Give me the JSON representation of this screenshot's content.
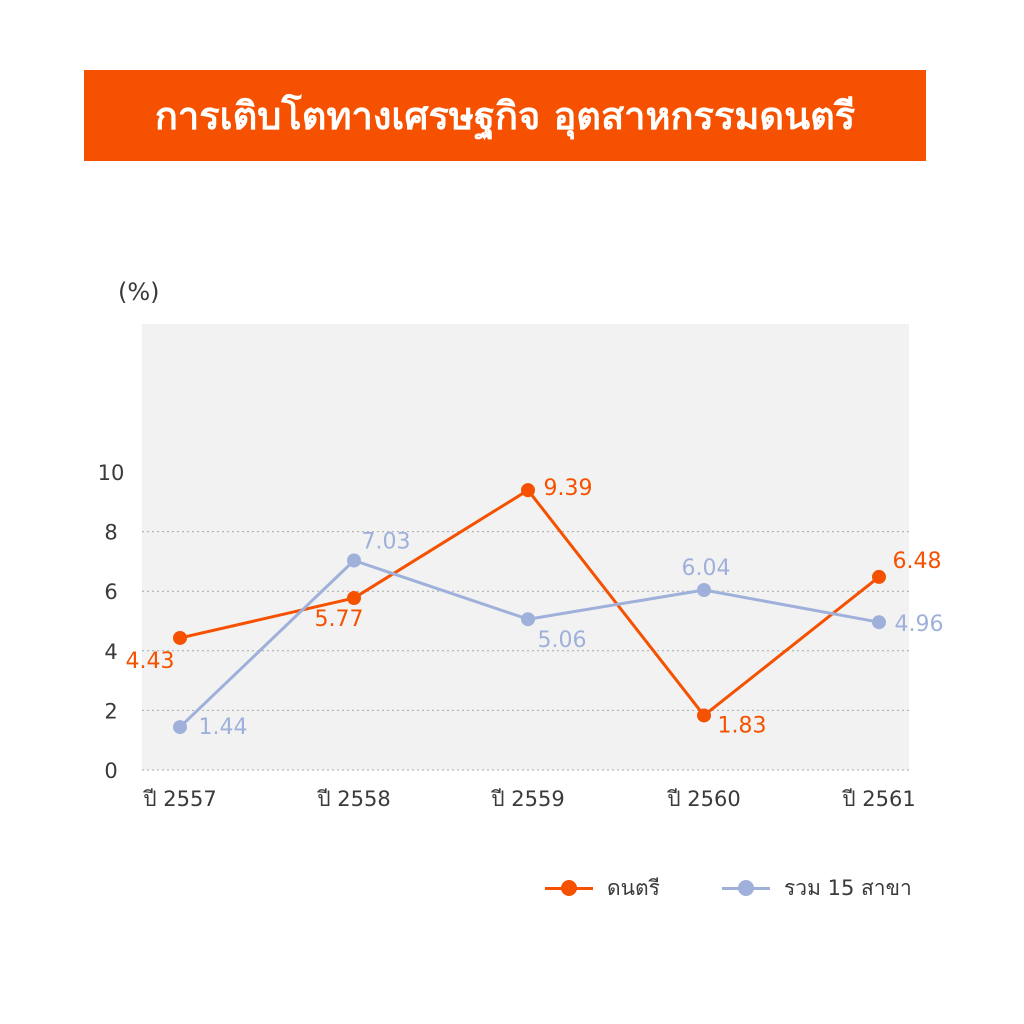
{
  "title": "การเติบโตทางเศรษฐกิจ อุตสาหกรรมดนตรี",
  "colors": {
    "banner": "#f55100",
    "music": "#f55100",
    "all": "#9fb1db",
    "plot_bg": "#f2f2f2",
    "text": "#3a3a3a"
  },
  "chart_data": {
    "type": "line",
    "ylabel": "(%)",
    "ylim": [
      0,
      10
    ],
    "yticks": [
      0,
      2,
      4,
      6,
      8,
      10
    ],
    "grid": true,
    "legend_position": "bottom-right",
    "categories": [
      "ปี 2557",
      "ปี 2558",
      "ปี 2559",
      "ปี 2560",
      "ปี 2561"
    ],
    "series": [
      {
        "name": "ดนตรี",
        "values": [
          4.43,
          5.77,
          9.39,
          1.83,
          6.48
        ],
        "labels": [
          "4.43",
          "5.77",
          "9.39",
          "1.83",
          "6.48"
        ]
      },
      {
        "name": "รวม 15 สาขา",
        "values": [
          1.44,
          7.03,
          5.06,
          6.04,
          4.96
        ],
        "labels": [
          "1.44",
          "7.03",
          "5.06",
          "6.04",
          "4.96"
        ]
      }
    ]
  }
}
